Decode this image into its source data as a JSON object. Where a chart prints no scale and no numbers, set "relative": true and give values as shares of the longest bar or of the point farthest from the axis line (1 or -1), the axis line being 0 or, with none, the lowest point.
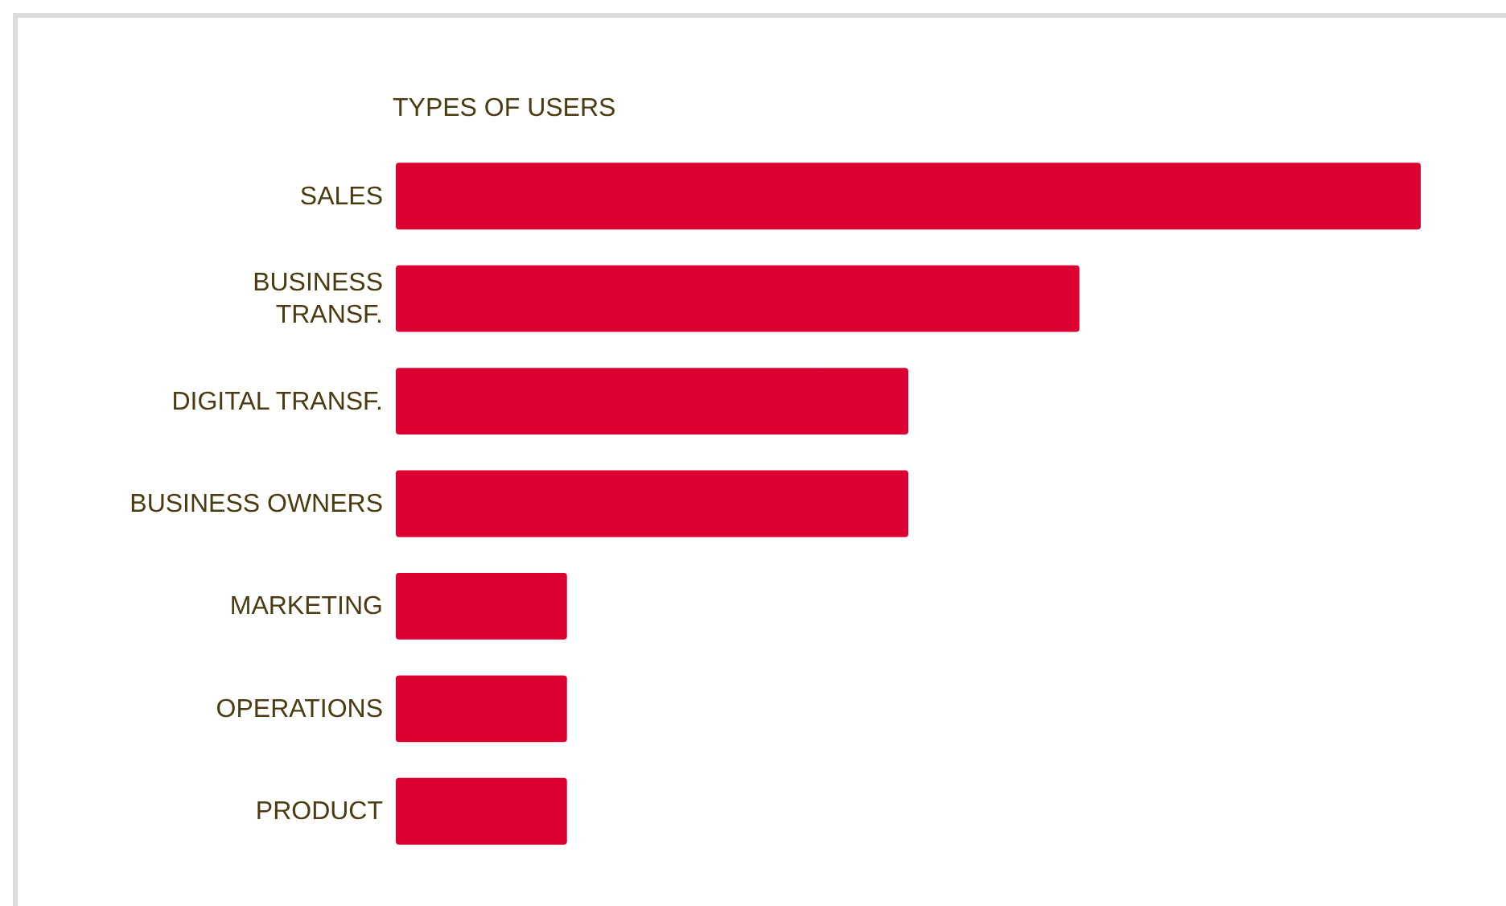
{
  "chart_data": {
    "type": "bar",
    "orientation": "horizontal",
    "relative": true,
    "title": "TYPES OF USERS",
    "categories": [
      "SALES",
      "BUSINESS TRANSF.",
      "DIGITAL TRANSF.",
      "BUSINESS OWNERS",
      "MARKETING",
      "OPERATIONS",
      "PRODUCT"
    ],
    "values": [
      1,
      0.667,
      0.5,
      0.5,
      0.167,
      0.167,
      0.167
    ],
    "color": "#dc0032"
  }
}
